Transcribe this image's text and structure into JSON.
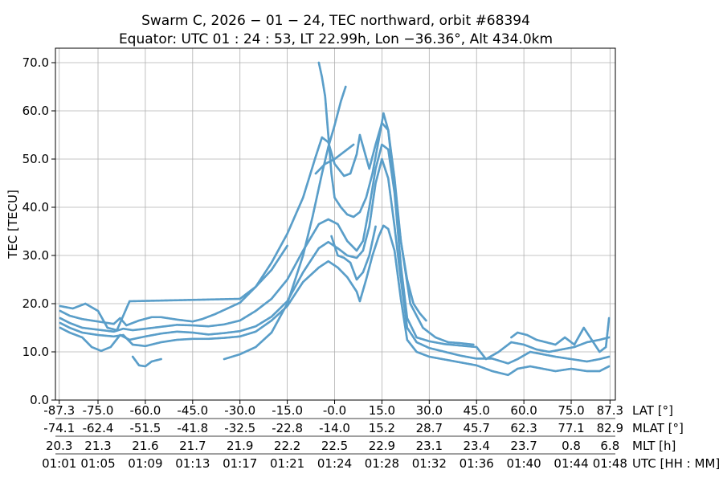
{
  "chart_data": {
    "type": "scatter",
    "title_line1": "Swarm C, 2026 − 01 − 24, TEC northward, orbit #68394",
    "title_line2": "Equator: UTC 01 : 24 : 53, LT 22.99h, Lon −36.36°, Alt 434.0km",
    "ylabel": "TEC [TECU]",
    "ylim": [
      0,
      73
    ],
    "yticks": [
      "0.0",
      "10.0",
      "20.0",
      "30.0",
      "40.0",
      "50.0",
      "60.0",
      "70.0"
    ],
    "grid": true,
    "marker_color": "#5a9ec9",
    "x_axes": [
      {
        "label": "LAT [°]",
        "ticks": [
          "-87.3",
          "-75.0",
          "-60.0",
          "-45.0",
          "-30.0",
          "-15.0",
          "-0.0",
          "15.0",
          "30.0",
          "45.0",
          "60.0",
          "75.0",
          "87.3"
        ]
      },
      {
        "label": "MLAT [°]",
        "ticks": [
          "-74.1",
          "-62.4",
          "-51.5",
          "-41.8",
          "-32.5",
          "-22.8",
          "-14.0",
          "15.2",
          "28.7",
          "45.7",
          "62.3",
          "77.1",
          "82.9"
        ]
      },
      {
        "label": "MLT [h]",
        "ticks": [
          "20.3",
          "21.3",
          "21.6",
          "21.7",
          "21.9",
          "22.2",
          "22.5",
          "22.9",
          "23.1",
          "23.4",
          "23.7",
          "0.8",
          "6.8"
        ]
      },
      {
        "label": "UTC [HH : MM]",
        "ticks": [
          "01:01",
          "01:05",
          "01:09",
          "01:13",
          "01:17",
          "01:21",
          "01:24",
          "01:28",
          "01:32",
          "01:36",
          "01:40",
          "01:44",
          "01:48"
        ]
      }
    ],
    "x_tick_positions_lat": [
      -87.3,
      -75,
      -60,
      -45,
      -30,
      -15,
      0,
      15,
      30,
      45,
      60,
      75,
      87.3
    ],
    "xlim": [
      -88.5,
      89
    ],
    "series": [
      {
        "name": "track-1",
        "points": [
          [
            -87,
            16
          ],
          [
            -84,
            15
          ],
          [
            -80,
            14
          ],
          [
            -75,
            13.5
          ],
          [
            -70,
            13.2
          ],
          [
            -67,
            13.5
          ],
          [
            -64,
            11.5
          ],
          [
            -60,
            11.2
          ],
          [
            -55,
            12
          ],
          [
            -50,
            12.5
          ],
          [
            -45,
            12.7
          ],
          [
            -40,
            12.7
          ],
          [
            -35,
            12.9
          ],
          [
            -30,
            13.2
          ],
          [
            -25,
            14.2
          ],
          [
            -20,
            16.5
          ],
          [
            -15,
            19.5
          ],
          [
            -10,
            24.5
          ],
          [
            -5,
            27.5
          ],
          [
            -2,
            28.8
          ],
          [
            1,
            27.5
          ],
          [
            4,
            25.5
          ],
          [
            7,
            22.5
          ],
          [
            8,
            20.5
          ],
          [
            10,
            25
          ],
          [
            12,
            30
          ],
          [
            14,
            34
          ],
          [
            15.5,
            36.2
          ],
          [
            17,
            35.5
          ],
          [
            19,
            31
          ],
          [
            21,
            21
          ],
          [
            23,
            12.5
          ],
          [
            26,
            10
          ],
          [
            30,
            9
          ],
          [
            35,
            8.4
          ],
          [
            40,
            7.8
          ],
          [
            45,
            7.2
          ],
          [
            50,
            6
          ],
          [
            55,
            5.2
          ],
          [
            58,
            6.5
          ],
          [
            62,
            7
          ],
          [
            66,
            6.5
          ],
          [
            70,
            6
          ],
          [
            75,
            6.5
          ],
          [
            80,
            6
          ],
          [
            84,
            6
          ],
          [
            87,
            7
          ]
        ]
      },
      {
        "name": "track-2",
        "points": [
          [
            -87,
            15
          ],
          [
            -84,
            14
          ],
          [
            -80,
            13
          ],
          [
            -77,
            11
          ],
          [
            -74,
            10.2
          ],
          [
            -71,
            11
          ],
          [
            -68,
            13.5
          ],
          [
            -65,
            12.5
          ],
          [
            -60,
            13.2
          ],
          [
            -55,
            13.8
          ],
          [
            -50,
            14.2
          ],
          [
            -45,
            14
          ],
          [
            -40,
            13.6
          ],
          [
            -35,
            13.9
          ],
          [
            -30,
            14.3
          ],
          [
            -25,
            15.3
          ],
          [
            -20,
            17.3
          ],
          [
            -15,
            20.5
          ],
          [
            -10,
            26.5
          ],
          [
            -5,
            31.5
          ],
          [
            -2,
            32.8
          ],
          [
            1,
            31.5
          ],
          [
            4,
            30
          ],
          [
            7,
            29.5
          ],
          [
            9,
            31
          ],
          [
            11,
            36
          ],
          [
            13,
            45
          ],
          [
            15,
            50
          ],
          [
            17,
            46
          ],
          [
            19,
            36
          ],
          [
            21,
            25
          ],
          [
            23,
            15
          ],
          [
            26,
            12
          ],
          [
            30,
            10.8
          ],
          [
            35,
            10
          ],
          [
            40,
            9.2
          ],
          [
            45,
            8.6
          ],
          [
            50,
            8.6
          ],
          [
            55,
            7.6
          ],
          [
            58,
            8.5
          ],
          [
            62,
            10
          ],
          [
            66,
            9.5
          ],
          [
            70,
            9
          ],
          [
            75,
            8.5
          ],
          [
            80,
            8
          ],
          [
            84,
            8.5
          ],
          [
            87,
            9
          ]
        ]
      },
      {
        "name": "track-3",
        "points": [
          [
            -87,
            17
          ],
          [
            -84,
            16
          ],
          [
            -80,
            15
          ],
          [
            -75,
            14.6
          ],
          [
            -70,
            14.2
          ],
          [
            -67,
            14.8
          ],
          [
            -64,
            14.5
          ],
          [
            -60,
            14.8
          ],
          [
            -55,
            15.2
          ],
          [
            -50,
            15.6
          ],
          [
            -45,
            15.5
          ],
          [
            -40,
            15.3
          ],
          [
            -35,
            15.7
          ],
          [
            -30,
            16.5
          ],
          [
            -25,
            18.5
          ],
          [
            -20,
            21
          ],
          [
            -15,
            25
          ],
          [
            -10,
            31
          ],
          [
            -5,
            36.5
          ],
          [
            -2,
            37.5
          ],
          [
            1,
            36.5
          ],
          [
            4,
            33
          ],
          [
            7,
            31
          ],
          [
            9,
            33
          ],
          [
            11,
            40
          ],
          [
            13,
            48
          ],
          [
            15,
            53
          ],
          [
            17,
            52
          ],
          [
            19,
            43
          ],
          [
            21,
            28
          ],
          [
            23,
            17
          ],
          [
            26,
            13
          ],
          [
            30,
            12.2
          ],
          [
            35,
            11.6
          ],
          [
            40,
            11.3
          ],
          [
            45,
            11
          ],
          [
            48,
            8.5
          ],
          [
            52,
            10
          ],
          [
            56,
            12
          ],
          [
            60,
            11.5
          ],
          [
            64,
            10.5
          ],
          [
            68,
            10
          ],
          [
            72,
            10.5
          ],
          [
            76,
            11
          ],
          [
            80,
            12
          ],
          [
            84,
            12.5
          ],
          [
            87,
            13
          ]
        ]
      },
      {
        "name": "track-4",
        "points": [
          [
            -87,
            18.5
          ],
          [
            -84,
            17.5
          ],
          [
            -80,
            16.8
          ],
          [
            -75,
            16.3
          ],
          [
            -70,
            15.8
          ],
          [
            -68,
            17
          ],
          [
            -66,
            15.5
          ],
          [
            -62,
            16.5
          ],
          [
            -58,
            17.2
          ],
          [
            -55,
            17.2
          ],
          [
            -50,
            16.7
          ],
          [
            -45,
            16.3
          ],
          [
            -42,
            16.8
          ],
          [
            -38,
            17.8
          ],
          [
            -34,
            19
          ],
          [
            -30,
            20.2
          ],
          [
            -25,
            23.5
          ],
          [
            -20,
            28.5
          ],
          [
            -15,
            34.5
          ],
          [
            -10,
            42
          ],
          [
            -6,
            50.5
          ],
          [
            -4,
            54.5
          ],
          [
            -2,
            53.5
          ],
          [
            0,
            49
          ],
          [
            3,
            46.5
          ],
          [
            5,
            47
          ],
          [
            7,
            51
          ],
          [
            8,
            55
          ],
          [
            11,
            48
          ],
          [
            13,
            53
          ],
          [
            15,
            57.5
          ],
          [
            17,
            56
          ],
          [
            19,
            46
          ],
          [
            21,
            33
          ],
          [
            24,
            20
          ],
          [
            28,
            15
          ],
          [
            32,
            13
          ],
          [
            36,
            12
          ],
          [
            40,
            11.8
          ],
          [
            44,
            11.5
          ]
        ]
      },
      {
        "name": "track-5",
        "points": [
          [
            -87,
            19.5
          ],
          [
            -83,
            19
          ],
          [
            -79,
            20
          ],
          [
            -75,
            18.5
          ],
          [
            -72,
            15
          ],
          [
            -69,
            14.5
          ],
          [
            -67,
            17.5
          ],
          [
            -65,
            20.5
          ],
          [
            -30,
            21
          ],
          [
            -25,
            23.5
          ],
          [
            -20,
            27
          ],
          [
            -17,
            30
          ],
          [
            -15,
            32
          ]
        ]
      },
      {
        "name": "track-6",
        "points": [
          [
            -35,
            8.5
          ],
          [
            -30,
            9.5
          ],
          [
            -25,
            11
          ],
          [
            -20,
            14
          ],
          [
            -15,
            20
          ],
          [
            -10,
            30
          ],
          [
            -7,
            38
          ],
          [
            -4,
            47
          ],
          [
            -2,
            52.5
          ],
          [
            0,
            57
          ],
          [
            2,
            62
          ],
          [
            3.5,
            65
          ]
        ]
      },
      {
        "name": "track-7",
        "points": [
          [
            -6,
            47
          ],
          [
            -3,
            49
          ],
          [
            0,
            50
          ],
          [
            2,
            51
          ],
          [
            4,
            52
          ],
          [
            6,
            53
          ]
        ]
      },
      {
        "name": "track-8",
        "points": [
          [
            -5,
            70
          ],
          [
            -4,
            67
          ],
          [
            -3,
            63
          ],
          [
            -2,
            55
          ],
          [
            -1,
            47
          ],
          [
            0,
            42
          ],
          [
            2,
            40
          ],
          [
            4,
            38.5
          ],
          [
            6,
            38
          ],
          [
            8,
            39
          ],
          [
            10,
            42
          ],
          [
            12,
            47
          ],
          [
            14,
            54
          ],
          [
            15.5,
            59.5
          ],
          [
            17,
            56
          ],
          [
            19,
            44
          ],
          [
            21,
            33
          ],
          [
            23,
            25
          ],
          [
            25,
            20
          ],
          [
            27,
            18
          ],
          [
            29,
            16.5
          ]
        ]
      },
      {
        "name": "track-9",
        "points": [
          [
            -1,
            34
          ],
          [
            1,
            30
          ],
          [
            3,
            29.5
          ],
          [
            5,
            28.5
          ],
          [
            7,
            25
          ],
          [
            9,
            26.5
          ],
          [
            11,
            30
          ],
          [
            13,
            36
          ]
        ]
      },
      {
        "name": "track-10",
        "points": [
          [
            -64,
            9
          ],
          [
            -62,
            7.2
          ],
          [
            -60,
            7
          ],
          [
            -58,
            8
          ],
          [
            -55,
            8.5
          ]
        ]
      },
      {
        "name": "track-11",
        "points": [
          [
            56,
            13
          ],
          [
            58,
            14
          ],
          [
            61,
            13.5
          ],
          [
            64,
            12.5
          ],
          [
            67,
            12
          ],
          [
            70,
            11.5
          ],
          [
            73,
            13
          ],
          [
            76,
            11.5
          ],
          [
            79,
            15
          ],
          [
            81,
            13
          ],
          [
            84,
            10
          ],
          [
            86,
            11
          ],
          [
            87,
            17
          ]
        ]
      }
    ]
  }
}
